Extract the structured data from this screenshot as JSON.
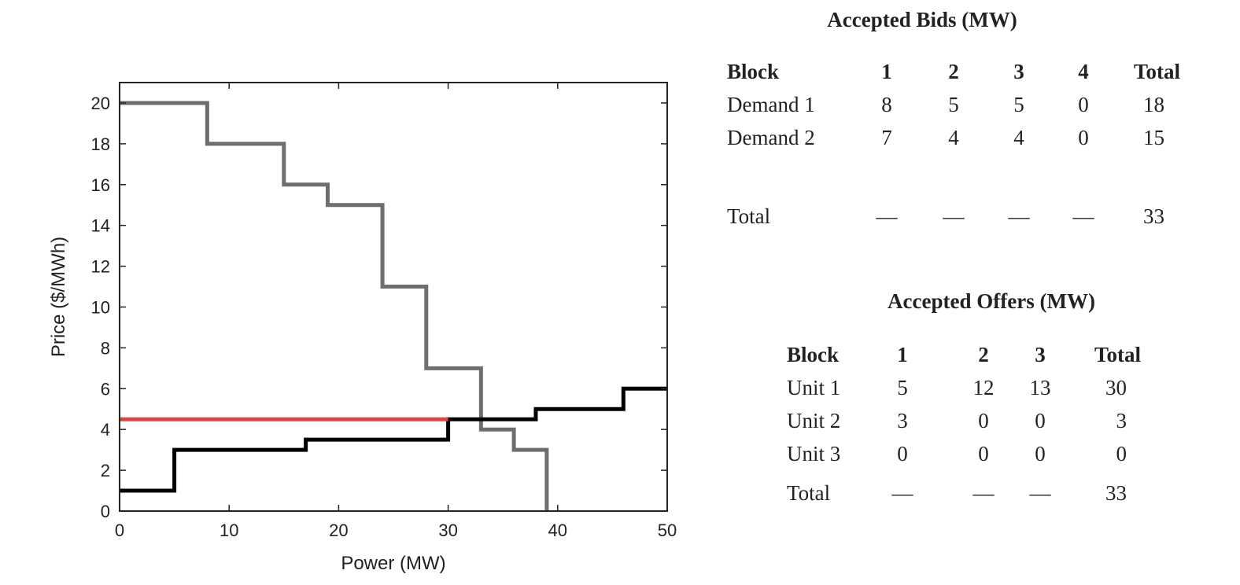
{
  "chart_data": {
    "type": "line",
    "xlabel": "Power (MW)",
    "ylabel": "Price ($/MWh)",
    "xlim": [
      0,
      50
    ],
    "ylim": [
      0,
      21
    ],
    "xticks": [
      0,
      10,
      20,
      30,
      40,
      50
    ],
    "yticks": [
      0,
      2,
      4,
      6,
      8,
      10,
      12,
      14,
      16,
      18,
      20
    ],
    "grid": false,
    "series": [
      {
        "kind": "demand-step",
        "color": "#6e6e6e",
        "points": [
          [
            0,
            20
          ],
          [
            8,
            20
          ],
          [
            8,
            18
          ],
          [
            15,
            18
          ],
          [
            15,
            16
          ],
          [
            19,
            16
          ],
          [
            19,
            15
          ],
          [
            24,
            15
          ],
          [
            24,
            11
          ],
          [
            28,
            11
          ],
          [
            28,
            7
          ],
          [
            33,
            7
          ],
          [
            33,
            4
          ],
          [
            36,
            4
          ],
          [
            36,
            3
          ],
          [
            39,
            3
          ],
          [
            39,
            0
          ]
        ]
      },
      {
        "kind": "supply-step",
        "color": "#000000",
        "points": [
          [
            0,
            1
          ],
          [
            5,
            1
          ],
          [
            5,
            3
          ],
          [
            17,
            3
          ],
          [
            17,
            3.5
          ],
          [
            30,
            3.5
          ],
          [
            30,
            4.5
          ],
          [
            38,
            4.5
          ],
          [
            38,
            5
          ],
          [
            46,
            5
          ],
          [
            46,
            6
          ],
          [
            50,
            6
          ]
        ]
      },
      {
        "kind": "clearing-price",
        "color": "#e8403a",
        "points": [
          [
            0,
            4.5
          ],
          [
            30,
            4.5
          ]
        ]
      }
    ]
  },
  "bids_table": {
    "title": "Accepted Bids (MW)",
    "header": [
      "Block",
      "1",
      "2",
      "3",
      "4",
      "Total"
    ],
    "rows": [
      [
        "Demand 1",
        "8",
        "5",
        "5",
        "0",
        "18"
      ],
      [
        "Demand 2",
        "7",
        "4",
        "4",
        "0",
        "15"
      ]
    ],
    "total_row": [
      "Total",
      "—",
      "—",
      "—",
      "—",
      "33"
    ]
  },
  "offers_table": {
    "title": "Accepted Offers (MW)",
    "header": [
      "Block",
      "1",
      "2",
      "3",
      "Total"
    ],
    "rows": [
      [
        "Unit 1",
        "5",
        "12",
        "13",
        "30"
      ],
      [
        "Unit 2",
        "3",
        "0",
        "0",
        "3"
      ],
      [
        "Unit 3",
        "0",
        "0",
        "0",
        "0"
      ]
    ],
    "total_row": [
      "Total",
      "—",
      "—",
      "—",
      "33"
    ]
  }
}
